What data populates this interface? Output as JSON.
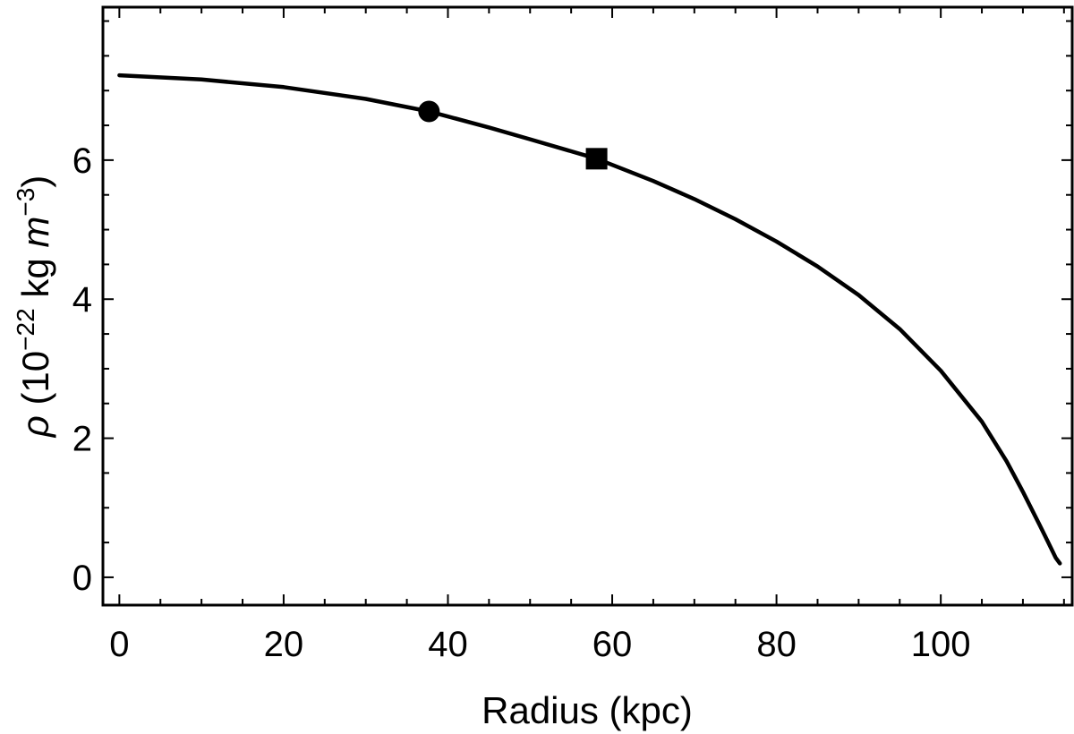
{
  "chart_data": {
    "type": "line",
    "xlabel": "Radius (kpc)",
    "ylabel": {
      "symbol": "ρ",
      "open": " (10",
      "exp1": "−22",
      "mid": " kg ",
      "unit_var": "m",
      "exp2": "−3",
      "close": ")"
    },
    "xlim": [
      -2,
      116
    ],
    "ylim": [
      -0.4,
      8.2
    ],
    "x_ticks": [
      0,
      20,
      40,
      60,
      80,
      100
    ],
    "y_ticks": [
      0,
      2,
      4,
      6
    ],
    "x_minor_step": 5,
    "y_minor_step": 0.5,
    "grid": false,
    "legend": "none",
    "series": [
      {
        "points": [
          [
            0,
            7.22
          ],
          [
            10,
            7.16
          ],
          [
            20,
            7.05
          ],
          [
            30,
            6.88
          ],
          [
            37.7,
            6.7
          ],
          [
            45,
            6.47
          ],
          [
            50,
            6.3
          ],
          [
            58.1,
            6.02
          ],
          [
            65,
            5.7
          ],
          [
            70,
            5.44
          ],
          [
            75,
            5.15
          ],
          [
            80,
            4.83
          ],
          [
            85,
            4.47
          ],
          [
            90,
            4.06
          ],
          [
            95,
            3.57
          ],
          [
            100,
            2.97
          ],
          [
            105,
            2.24
          ],
          [
            108,
            1.67
          ],
          [
            110,
            1.23
          ],
          [
            112,
            0.76
          ],
          [
            113,
            0.52
          ],
          [
            114,
            0.28
          ],
          [
            114.5,
            0.2
          ]
        ]
      }
    ],
    "markers": [
      {
        "shape": "circle",
        "x": 37.7,
        "y": 6.7
      },
      {
        "shape": "square",
        "x": 58.1,
        "y": 6.02
      }
    ]
  }
}
